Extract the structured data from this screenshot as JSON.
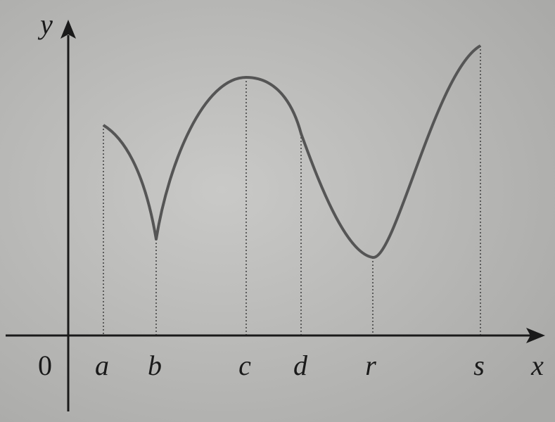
{
  "axes": {
    "x_label": "x",
    "y_label": "y",
    "origin": "0"
  },
  "points": [
    "a",
    "b",
    "c",
    "d",
    "r",
    "s"
  ]
}
